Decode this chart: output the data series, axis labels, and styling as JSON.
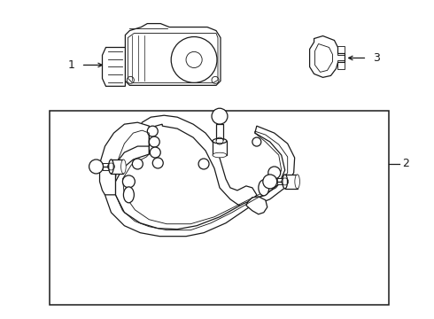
{
  "background_color": "#ffffff",
  "line_color": "#1a1a1a",
  "label_color": "#1a1a1a",
  "fig_width": 4.9,
  "fig_height": 3.6,
  "dpi": 100,
  "font_size_labels": 9
}
